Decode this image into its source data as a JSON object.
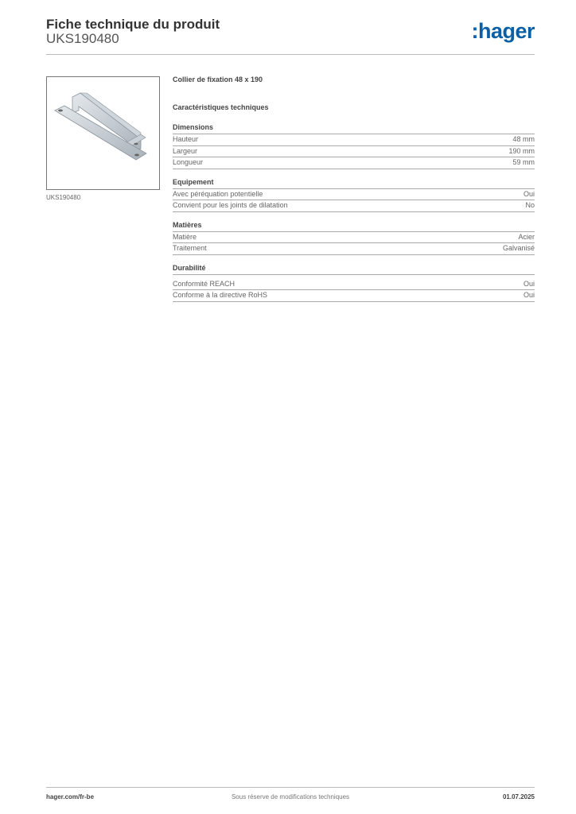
{
  "header": {
    "title": "Fiche technique du produit",
    "reference": "UKS190480",
    "logo": ":hager",
    "logo_color": "#0b5fa5"
  },
  "product": {
    "image_caption": "UKS190480",
    "name": "Collier de fixation 48 x 190",
    "characteristics_title": "Caractéristiques techniques"
  },
  "sections": [
    {
      "title": "Dimensions",
      "rows": [
        {
          "label": "Hauteur",
          "value": "48 mm"
        },
        {
          "label": "Largeur",
          "value": "190 mm"
        },
        {
          "label": "Longueur",
          "value": "59 mm"
        }
      ]
    },
    {
      "title": "Equipement",
      "rows": [
        {
          "label": "Avec péréquation potentielle",
          "value": "Oui"
        },
        {
          "label": "Convient pour les joints de dilatation",
          "value": "No"
        }
      ]
    },
    {
      "title": "Matières",
      "rows": [
        {
          "label": "Matière",
          "value": "Acier"
        },
        {
          "label": "Traitement",
          "value": "Galvanisé"
        }
      ]
    },
    {
      "title": "Durabilité",
      "rows": [
        {
          "label": "Conformité REACH",
          "value": "Oui"
        },
        {
          "label": "Conforme à la directive RoHS",
          "value": "Oui"
        }
      ]
    }
  ],
  "footer": {
    "website": "hager.com/fr-be",
    "notice": "Sous réserve de modifications techniques",
    "date": "01.07.2025"
  }
}
